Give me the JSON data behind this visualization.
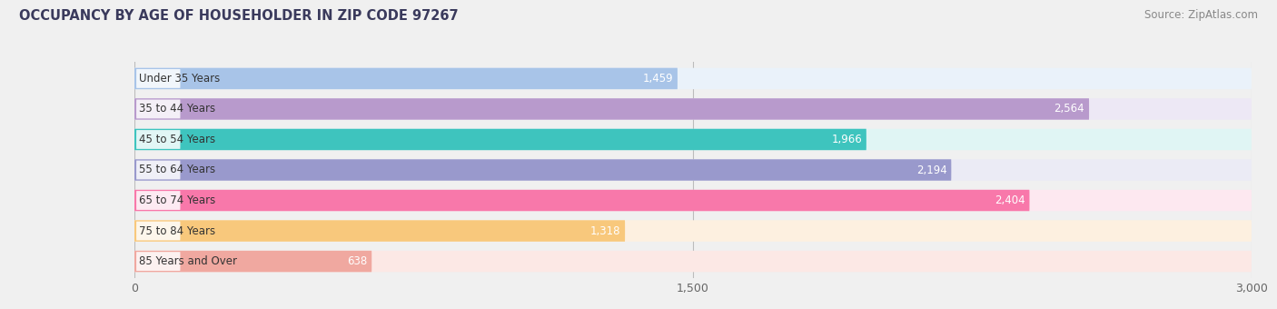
{
  "title": "OCCUPANCY BY AGE OF HOUSEHOLDER IN ZIP CODE 97267",
  "source": "Source: ZipAtlas.com",
  "categories": [
    "Under 35 Years",
    "35 to 44 Years",
    "45 to 54 Years",
    "55 to 64 Years",
    "65 to 74 Years",
    "75 to 84 Years",
    "85 Years and Over"
  ],
  "values": [
    1459,
    2564,
    1966,
    2194,
    2404,
    1318,
    638
  ],
  "bar_colors": [
    "#a8c4e8",
    "#b89acc",
    "#3ec4be",
    "#9999cc",
    "#f878aa",
    "#f8c87c",
    "#f0a8a0"
  ],
  "bar_bg_colors": [
    "#eaf2fa",
    "#ede8f5",
    "#e0f5f4",
    "#ebebf5",
    "#fde8f0",
    "#fdf0e0",
    "#fce8e5"
  ],
  "xlim": [
    0,
    3000
  ],
  "xticks": [
    0,
    1500,
    3000
  ],
  "title_color": "#3a3a5c",
  "title_fontsize": 10.5,
  "label_fontsize": 8.5,
  "value_fontsize": 8.5,
  "source_fontsize": 8.5,
  "background_color": "#f0f0f0"
}
